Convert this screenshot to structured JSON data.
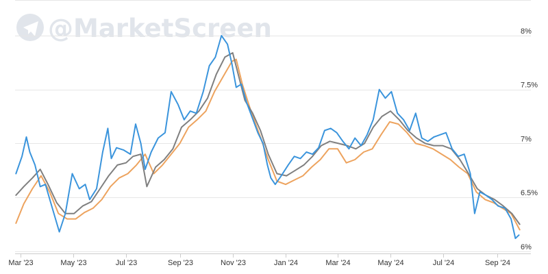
{
  "watermark": {
    "handle": "@MarketScreen",
    "icon": "telegram-paper-plane-icon"
  },
  "colors": {
    "blue": "#3a94dc",
    "gray": "#7f7f7f",
    "orange": "#eda35e",
    "grid": "#e6e6e6",
    "axis": "#cccccc"
  },
  "chart_data": {
    "type": "line",
    "title": "",
    "xlabel": "",
    "ylabel": "",
    "x_ticks": [
      "Mar '23",
      "May '23",
      "Jul '23",
      "Sep '23",
      "Nov '23",
      "Jan '24",
      "Mar '24",
      "May '24",
      "Jul '24",
      "Sep '24"
    ],
    "y_ticks": [
      "8%",
      "7.5%",
      "7%",
      "6.5%",
      "6%"
    ],
    "x_range": [
      "2023-02-23",
      "2024-09-28"
    ],
    "ylim": [
      5.98,
      8.33
    ],
    "y_unit": "%",
    "grid": "horizontal",
    "legend": "none",
    "series": [
      {
        "color": "blue",
        "points": [
          [
            "2023-02-24",
            6.72
          ],
          [
            "2023-03-03",
            6.88
          ],
          [
            "2023-03-08",
            7.06
          ],
          [
            "2023-03-12",
            6.92
          ],
          [
            "2023-03-18",
            6.8
          ],
          [
            "2023-03-24",
            6.6
          ],
          [
            "2023-03-30",
            6.62
          ],
          [
            "2023-04-07",
            6.4
          ],
          [
            "2023-04-15",
            6.18
          ],
          [
            "2023-04-22",
            6.35
          ],
          [
            "2023-04-30",
            6.72
          ],
          [
            "2023-05-08",
            6.58
          ],
          [
            "2023-05-15",
            6.62
          ],
          [
            "2023-05-20",
            6.48
          ],
          [
            "2023-05-28",
            6.58
          ],
          [
            "2023-06-04",
            6.92
          ],
          [
            "2023-06-10",
            7.14
          ],
          [
            "2023-06-14",
            6.86
          ],
          [
            "2023-06-20",
            6.96
          ],
          [
            "2023-06-28",
            6.94
          ],
          [
            "2023-07-06",
            6.9
          ],
          [
            "2023-07-12",
            7.18
          ],
          [
            "2023-07-18",
            7.0
          ],
          [
            "2023-07-23",
            6.76
          ],
          [
            "2023-07-30",
            6.92
          ],
          [
            "2023-08-07",
            7.05
          ],
          [
            "2023-08-15",
            7.1
          ],
          [
            "2023-08-22",
            7.48
          ],
          [
            "2023-08-30",
            7.36
          ],
          [
            "2023-09-06",
            7.22
          ],
          [
            "2023-09-13",
            7.3
          ],
          [
            "2023-09-20",
            7.28
          ],
          [
            "2023-09-28",
            7.48
          ],
          [
            "2023-10-05",
            7.72
          ],
          [
            "2023-10-12",
            7.8
          ],
          [
            "2023-10-19",
            8.0
          ],
          [
            "2023-10-26",
            7.92
          ],
          [
            "2023-10-31",
            7.74
          ],
          [
            "2023-11-05",
            7.52
          ],
          [
            "2023-11-11",
            7.55
          ],
          [
            "2023-11-17",
            7.38
          ],
          [
            "2023-11-23",
            7.25
          ],
          [
            "2023-11-30",
            7.1
          ],
          [
            "2023-12-06",
            7.0
          ],
          [
            "2023-12-11",
            6.8
          ],
          [
            "2023-12-15",
            6.68
          ],
          [
            "2023-12-20",
            6.62
          ],
          [
            "2023-12-27",
            6.7
          ],
          [
            "2024-01-04",
            6.8
          ],
          [
            "2024-01-11",
            6.88
          ],
          [
            "2024-01-18",
            6.86
          ],
          [
            "2024-01-25",
            6.92
          ],
          [
            "2024-02-01",
            6.9
          ],
          [
            "2024-02-08",
            6.96
          ],
          [
            "2024-02-15",
            7.12
          ],
          [
            "2024-02-22",
            7.14
          ],
          [
            "2024-02-29",
            7.1
          ],
          [
            "2024-03-07",
            7.02
          ],
          [
            "2024-03-14",
            6.95
          ],
          [
            "2024-03-21",
            7.05
          ],
          [
            "2024-03-28",
            6.98
          ],
          [
            "2024-04-04",
            7.08
          ],
          [
            "2024-04-11",
            7.22
          ],
          [
            "2024-04-18",
            7.5
          ],
          [
            "2024-04-25",
            7.42
          ],
          [
            "2024-05-02",
            7.48
          ],
          [
            "2024-05-09",
            7.28
          ],
          [
            "2024-05-16",
            7.22
          ],
          [
            "2024-05-23",
            7.12
          ],
          [
            "2024-05-30",
            7.28
          ],
          [
            "2024-06-06",
            7.05
          ],
          [
            "2024-06-13",
            7.02
          ],
          [
            "2024-06-20",
            7.06
          ],
          [
            "2024-06-27",
            7.08
          ],
          [
            "2024-07-04",
            7.1
          ],
          [
            "2024-07-11",
            6.95
          ],
          [
            "2024-07-18",
            6.88
          ],
          [
            "2024-07-25",
            6.9
          ],
          [
            "2024-08-01",
            6.72
          ],
          [
            "2024-08-06",
            6.35
          ],
          [
            "2024-08-12",
            6.55
          ],
          [
            "2024-08-19",
            6.52
          ],
          [
            "2024-08-26",
            6.48
          ],
          [
            "2024-09-02",
            6.42
          ],
          [
            "2024-09-10",
            6.4
          ],
          [
            "2024-09-17",
            6.3
          ],
          [
            "2024-09-22",
            6.12
          ],
          [
            "2024-09-26",
            6.15
          ]
        ]
      },
      {
        "color": "gray",
        "points": [
          [
            "2023-02-24",
            6.52
          ],
          [
            "2023-03-05",
            6.6
          ],
          [
            "2023-03-15",
            6.68
          ],
          [
            "2023-03-24",
            6.76
          ],
          [
            "2023-04-02",
            6.62
          ],
          [
            "2023-04-12",
            6.45
          ],
          [
            "2023-04-22",
            6.35
          ],
          [
            "2023-05-02",
            6.35
          ],
          [
            "2023-05-12",
            6.42
          ],
          [
            "2023-05-22",
            6.46
          ],
          [
            "2023-06-01",
            6.58
          ],
          [
            "2023-06-11",
            6.7
          ],
          [
            "2023-06-21",
            6.8
          ],
          [
            "2023-07-01",
            6.82
          ],
          [
            "2023-07-09",
            6.88
          ],
          [
            "2023-07-18",
            6.9
          ],
          [
            "2023-07-25",
            6.6
          ],
          [
            "2023-08-04",
            6.78
          ],
          [
            "2023-08-14",
            6.85
          ],
          [
            "2023-08-24",
            6.95
          ],
          [
            "2023-09-03",
            7.15
          ],
          [
            "2023-09-13",
            7.22
          ],
          [
            "2023-09-23",
            7.3
          ],
          [
            "2023-10-03",
            7.42
          ],
          [
            "2023-10-13",
            7.64
          ],
          [
            "2023-10-23",
            7.8
          ],
          [
            "2023-11-01",
            7.84
          ],
          [
            "2023-11-08",
            7.62
          ],
          [
            "2023-11-15",
            7.4
          ],
          [
            "2023-11-24",
            7.28
          ],
          [
            "2023-12-03",
            7.12
          ],
          [
            "2023-12-12",
            6.9
          ],
          [
            "2023-12-22",
            6.72
          ],
          [
            "2024-01-02",
            6.7
          ],
          [
            "2024-01-12",
            6.75
          ],
          [
            "2024-01-22",
            6.8
          ],
          [
            "2024-02-01",
            6.88
          ],
          [
            "2024-02-11",
            6.98
          ],
          [
            "2024-02-21",
            7.02
          ],
          [
            "2024-03-02",
            7.0
          ],
          [
            "2024-03-12",
            6.98
          ],
          [
            "2024-03-22",
            6.95
          ],
          [
            "2024-04-01",
            7.0
          ],
          [
            "2024-04-11",
            7.15
          ],
          [
            "2024-04-21",
            7.25
          ],
          [
            "2024-05-01",
            7.3
          ],
          [
            "2024-05-11",
            7.22
          ],
          [
            "2024-05-21",
            7.12
          ],
          [
            "2024-05-31",
            7.05
          ],
          [
            "2024-06-10",
            7.0
          ],
          [
            "2024-06-20",
            6.98
          ],
          [
            "2024-06-30",
            6.98
          ],
          [
            "2024-07-10",
            6.95
          ],
          [
            "2024-07-20",
            6.85
          ],
          [
            "2024-07-30",
            6.72
          ],
          [
            "2024-08-09",
            6.58
          ],
          [
            "2024-08-19",
            6.52
          ],
          [
            "2024-08-29",
            6.48
          ],
          [
            "2024-09-08",
            6.42
          ],
          [
            "2024-09-18",
            6.35
          ],
          [
            "2024-09-27",
            6.25
          ]
        ]
      },
      {
        "color": "orange",
        "points": [
          [
            "2023-02-24",
            6.26
          ],
          [
            "2023-03-05",
            6.44
          ],
          [
            "2023-03-15",
            6.58
          ],
          [
            "2023-03-25",
            6.7
          ],
          [
            "2023-04-04",
            6.55
          ],
          [
            "2023-04-14",
            6.35
          ],
          [
            "2023-04-24",
            6.3
          ],
          [
            "2023-05-04",
            6.3
          ],
          [
            "2023-05-14",
            6.36
          ],
          [
            "2023-05-24",
            6.4
          ],
          [
            "2023-06-03",
            6.48
          ],
          [
            "2023-06-13",
            6.6
          ],
          [
            "2023-06-23",
            6.68
          ],
          [
            "2023-07-03",
            6.72
          ],
          [
            "2023-07-13",
            6.8
          ],
          [
            "2023-07-23",
            6.9
          ],
          [
            "2023-08-02",
            6.72
          ],
          [
            "2023-08-12",
            6.8
          ],
          [
            "2023-08-22",
            6.9
          ],
          [
            "2023-09-01",
            7.0
          ],
          [
            "2023-09-11",
            7.15
          ],
          [
            "2023-09-21",
            7.22
          ],
          [
            "2023-10-01",
            7.3
          ],
          [
            "2023-10-11",
            7.48
          ],
          [
            "2023-10-21",
            7.62
          ],
          [
            "2023-10-31",
            7.76
          ],
          [
            "2023-11-05",
            7.78
          ],
          [
            "2023-11-12",
            7.55
          ],
          [
            "2023-11-22",
            7.3
          ],
          [
            "2023-12-02",
            7.08
          ],
          [
            "2023-12-12",
            6.85
          ],
          [
            "2023-12-22",
            6.65
          ],
          [
            "2024-01-01",
            6.62
          ],
          [
            "2024-01-11",
            6.66
          ],
          [
            "2024-01-21",
            6.7
          ],
          [
            "2024-01-31",
            6.78
          ],
          [
            "2024-02-10",
            6.85
          ],
          [
            "2024-02-20",
            6.95
          ],
          [
            "2024-03-01",
            6.95
          ],
          [
            "2024-03-11",
            6.82
          ],
          [
            "2024-03-21",
            6.85
          ],
          [
            "2024-03-31",
            6.92
          ],
          [
            "2024-04-10",
            6.95
          ],
          [
            "2024-04-20",
            7.08
          ],
          [
            "2024-04-30",
            7.2
          ],
          [
            "2024-05-10",
            7.18
          ],
          [
            "2024-05-20",
            7.1
          ],
          [
            "2024-05-30",
            7.0
          ],
          [
            "2024-06-09",
            6.98
          ],
          [
            "2024-06-19",
            6.95
          ],
          [
            "2024-06-29",
            6.9
          ],
          [
            "2024-07-09",
            6.85
          ],
          [
            "2024-07-19",
            6.78
          ],
          [
            "2024-07-29",
            6.72
          ],
          [
            "2024-08-08",
            6.55
          ],
          [
            "2024-08-18",
            6.48
          ],
          [
            "2024-08-28",
            6.45
          ],
          [
            "2024-09-07",
            6.4
          ],
          [
            "2024-09-17",
            6.35
          ],
          [
            "2024-09-27",
            6.2
          ]
        ]
      }
    ]
  }
}
